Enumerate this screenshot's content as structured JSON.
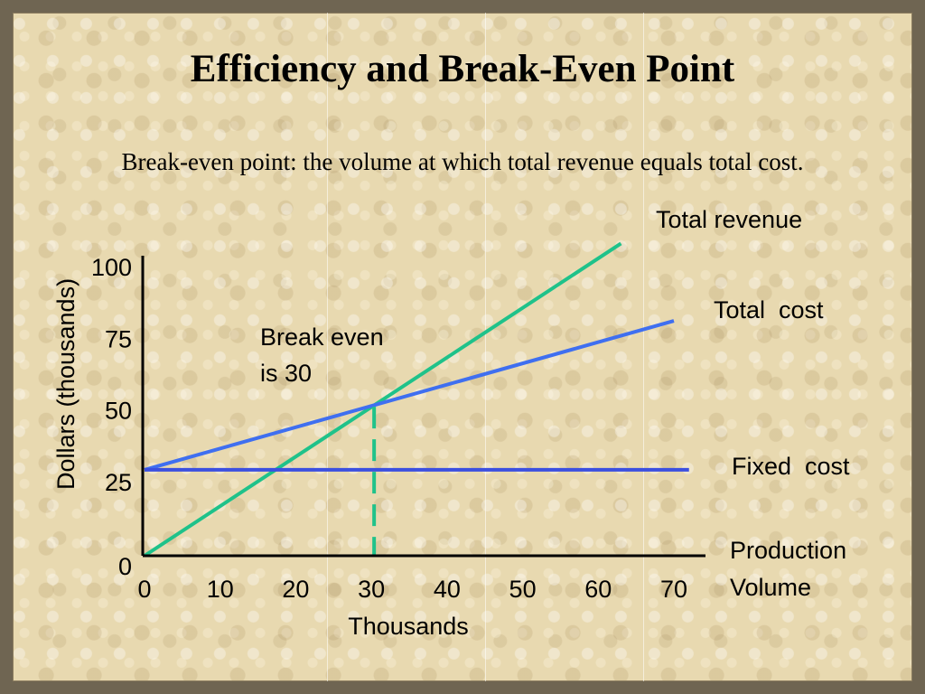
{
  "slide": {
    "title": "Efficiency and Break-Even Point",
    "subtitle": "Break-even point: the volume at which total revenue equals total cost."
  },
  "chart_data": {
    "type": "line",
    "ylabel": "Dollars (thousands)",
    "xlabel": "Thousands",
    "x_axis_name_lines": [
      "Production",
      "Volume"
    ],
    "xlim": [
      0,
      70
    ],
    "ylim": [
      0,
      100
    ],
    "x_ticks": [
      0,
      10,
      20,
      30,
      40,
      50,
      60,
      70
    ],
    "y_ticks": [
      0,
      25,
      50,
      75,
      100
    ],
    "series": [
      {
        "name": "Total revenue",
        "color": "#1fc28a",
        "points": [
          [
            0,
            0
          ],
          [
            63,
            109
          ]
        ]
      },
      {
        "name": "Total  cost",
        "color": "#3f6ff0",
        "points": [
          [
            0,
            30
          ],
          [
            70,
            82
          ]
        ]
      },
      {
        "name": "Fixed  cost",
        "color": "#3b4fe0",
        "points": [
          [
            0,
            30
          ],
          [
            72,
            30
          ]
        ]
      }
    ],
    "break_even": {
      "x": 30,
      "y": 52,
      "color": "#1fc28a",
      "label_lines": [
        "Break even",
        "is 30"
      ]
    },
    "axis_color": "#000000"
  }
}
